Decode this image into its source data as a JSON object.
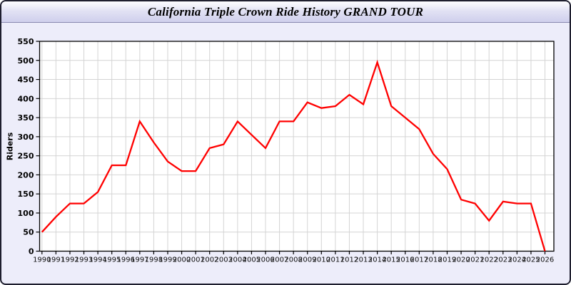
{
  "header": {
    "title": "California Triple Crown Ride History GRAND TOUR"
  },
  "chart_data": {
    "type": "line",
    "title": "California Triple Crown Ride History GRAND TOUR",
    "xlabel": "",
    "ylabel": "Riders",
    "categories": [
      "1990",
      "1991",
      "1992",
      "1993",
      "1994",
      "1995",
      "1996",
      "1997",
      "1998",
      "1999",
      "2000",
      "2001",
      "2002",
      "2003",
      "2004",
      "2005",
      "2006",
      "2007",
      "2008",
      "2009",
      "2010",
      "2011",
      "2012",
      "2013",
      "2014",
      "2015",
      "2016",
      "2017",
      "2018",
      "2019",
      "2020",
      "2021",
      "2022",
      "2023",
      "2024",
      "2025",
      "2026"
    ],
    "values": [
      50,
      90,
      125,
      125,
      155,
      225,
      225,
      340,
      285,
      235,
      210,
      210,
      270,
      280,
      340,
      305,
      270,
      340,
      340,
      390,
      375,
      380,
      410,
      385,
      495,
      380,
      350,
      320,
      255,
      215,
      135,
      125,
      80,
      130,
      125,
      125,
      0
    ],
    "ylim": [
      0,
      550
    ],
    "ytick_step": 50,
    "grid": true,
    "legend_position": "none"
  },
  "colors": {
    "line": "#ff0000",
    "grid": "#d4d4d4",
    "plot_border": "#000000",
    "plot_bg": "#ffffff",
    "page_bg": "#ededfa",
    "frame_border": "#1e1e2e",
    "header_gradient_top": "#fdfdff",
    "header_gradient_bottom": "#cfcfec"
  }
}
